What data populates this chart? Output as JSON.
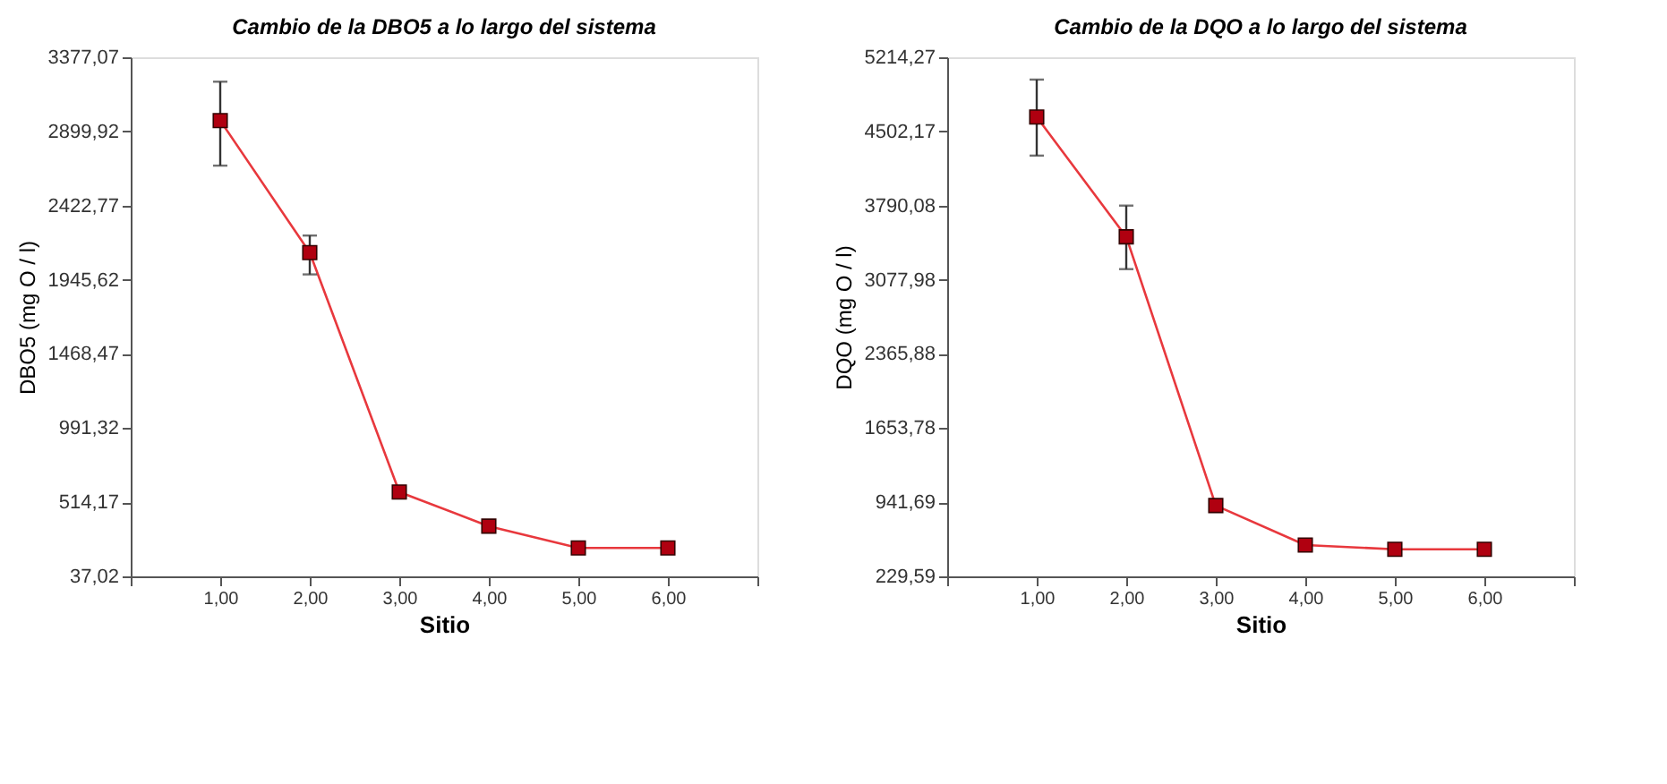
{
  "chart_data": [
    {
      "type": "line",
      "title": "Cambio de la DBO5 a lo largo del sistema",
      "xlabel": "Sitio",
      "ylabel": "DBO5 (mg O / l)",
      "x": [
        1,
        2,
        3,
        4,
        5,
        6
      ],
      "series": [
        {
          "color": "#e8383d",
          "values": [
            2970,
            2120,
            580,
            360,
            220,
            220
          ],
          "errors": [
            [
              2680,
              3220
            ],
            [
              1980,
              2230
            ],
            null,
            null,
            null,
            null
          ]
        }
      ],
      "marker": "square",
      "line_style": "solid",
      "grid": false,
      "xlim": [
        0,
        7
      ],
      "xticks": [
        {
          "value": 0,
          "label": null
        },
        {
          "value": 1,
          "label": "1,00"
        },
        {
          "value": 2,
          "label": "2,00"
        },
        {
          "value": 3,
          "label": "3,00"
        },
        {
          "value": 4,
          "label": "4,00"
        },
        {
          "value": 5,
          "label": "5,00"
        },
        {
          "value": 6,
          "label": "6,00"
        },
        {
          "value": 7,
          "label": null
        }
      ],
      "ylim": [
        37.02,
        3377.07
      ],
      "yticks": [
        {
          "value": 37.02,
          "label": "37,02"
        },
        {
          "value": 514.17,
          "label": "514,17"
        },
        {
          "value": 991.32,
          "label": "991,32"
        },
        {
          "value": 1468.47,
          "label": "1468,47"
        },
        {
          "value": 1945.62,
          "label": "1945,62"
        },
        {
          "value": 2422.77,
          "label": "2422,77"
        },
        {
          "value": 2899.92,
          "label": "2899,92"
        },
        {
          "value": 3377.07,
          "label": "3377,07"
        }
      ]
    },
    {
      "type": "line",
      "title": "Cambio de la DQO a lo largo del sistema",
      "xlabel": "Sitio",
      "ylabel": "DQO (mg O / l)",
      "x": [
        1,
        2,
        3,
        4,
        5,
        6
      ],
      "series": [
        {
          "color": "#e8383d",
          "values": [
            4640,
            3490,
            910,
            530,
            490,
            490
          ],
          "errors": [
            [
              4270,
              5000
            ],
            [
              3180,
              3790
            ],
            null,
            null,
            null,
            null
          ]
        }
      ],
      "marker": "square",
      "line_style": "solid",
      "grid": false,
      "xlim": [
        0,
        7
      ],
      "xticks": [
        {
          "value": 0,
          "label": null
        },
        {
          "value": 1,
          "label": "1,00"
        },
        {
          "value": 2,
          "label": "2,00"
        },
        {
          "value": 3,
          "label": "3,00"
        },
        {
          "value": 4,
          "label": "4,00"
        },
        {
          "value": 5,
          "label": "5,00"
        },
        {
          "value": 6,
          "label": "6,00"
        },
        {
          "value": 7,
          "label": null
        }
      ],
      "ylim": [
        229.59,
        5214.27
      ],
      "yticks": [
        {
          "value": 229.59,
          "label": "229,59"
        },
        {
          "value": 941.69,
          "label": "941,69"
        },
        {
          "value": 1653.78,
          "label": "1653,78"
        },
        {
          "value": 2365.88,
          "label": "2365,88"
        },
        {
          "value": 3077.98,
          "label": "3077,98"
        },
        {
          "value": 3790.08,
          "label": "3790,08"
        },
        {
          "value": 4502.17,
          "label": "4502,17"
        },
        {
          "value": 5214.27,
          "label": "5214,27"
        }
      ]
    }
  ]
}
